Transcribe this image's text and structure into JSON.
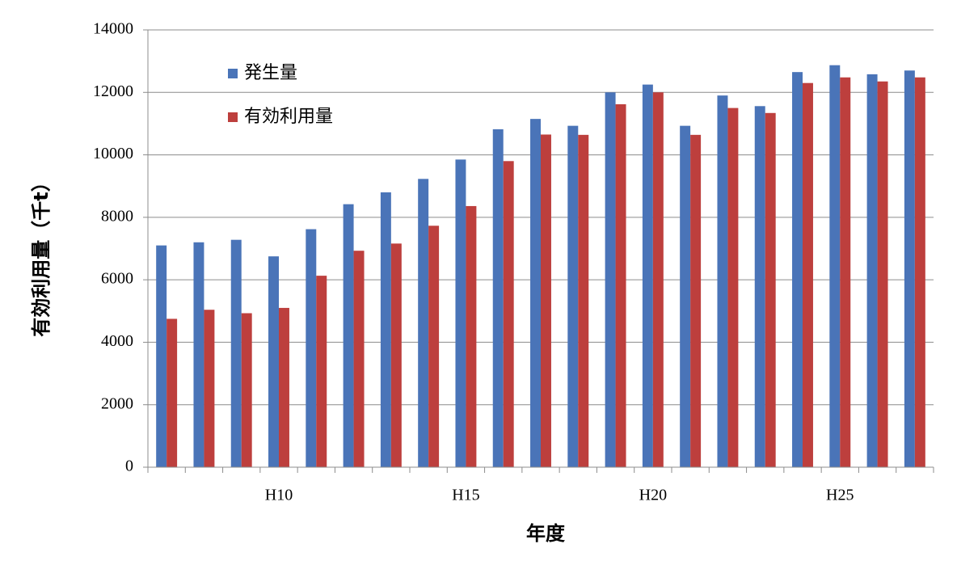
{
  "chart_data": {
    "type": "bar",
    "x_label": "年度",
    "y_label": "有効利用量（千t）",
    "categories": [
      null,
      null,
      null,
      "H10",
      null,
      null,
      null,
      null,
      "H15",
      null,
      null,
      null,
      null,
      "H20",
      null,
      null,
      null,
      null,
      "H25",
      null,
      null
    ],
    "series": [
      {
        "name": "発生量",
        "color": "#4a74b8",
        "values": [
          7100,
          7200,
          7280,
          6750,
          7620,
          8420,
          8800,
          9230,
          9850,
          10820,
          11150,
          10930,
          12000,
          12250,
          10930,
          11900,
          11560,
          12650,
          12870,
          12580,
          12700
        ]
      },
      {
        "name": "有効利用量",
        "color": "#bd3f3d",
        "values": [
          4750,
          5040,
          4930,
          5100,
          6130,
          6930,
          7160,
          7730,
          8360,
          9800,
          10650,
          10640,
          11620,
          12000,
          10640,
          11500,
          11340,
          12300,
          12480,
          12350,
          12480
        ]
      }
    ],
    "ylim": [
      0,
      14000
    ],
    "yticks": [
      0,
      2000,
      4000,
      6000,
      8000,
      10000,
      12000,
      14000
    ],
    "grid": true
  }
}
